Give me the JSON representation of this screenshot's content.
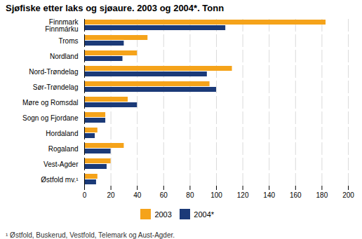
{
  "chart_data": {
    "type": "bar",
    "orientation": "horizontal",
    "title": "Sjøfiske etter laks og sjøaure. 2003 og 2004*. Tonn",
    "categories": [
      "Finnmark\nFinnmárku",
      "Troms",
      "Nordland",
      "Nord-Trøndelag",
      "Sør-Trøndelag",
      "Møre og Romsdal",
      "Sogn og Fjordane",
      "Hordaland",
      "Rogaland",
      "Vest-Agder",
      "Østfold mv.¹"
    ],
    "series": [
      {
        "name": "2003",
        "color": "#F5A31A",
        "values": [
          183,
          48,
          40,
          112,
          95,
          33,
          16,
          10,
          30,
          20,
          10
        ]
      },
      {
        "name": "2004*",
        "color": "#1B3A78",
        "values": [
          107,
          30,
          29,
          93,
          100,
          40,
          16,
          8,
          20,
          17,
          9
        ]
      }
    ],
    "xlim": [
      0,
      200
    ],
    "xticks": [
      0,
      20,
      40,
      60,
      80,
      100,
      120,
      140,
      160,
      180,
      200
    ],
    "grid": true,
    "legend": "bottom",
    "footnote": "¹ Østfold, Buskerud, Vestfold, Telemark og Aust-Agder."
  }
}
